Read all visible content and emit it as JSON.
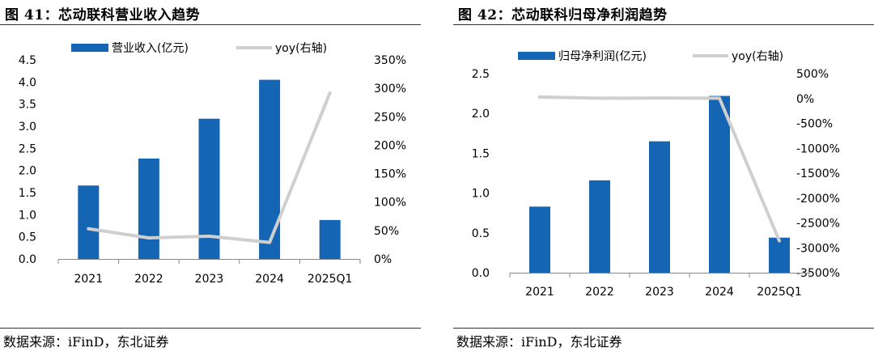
{
  "left": {
    "title": "图 41：芯动联科营业收入趋势",
    "source": "数据来源：iFinD，东北证券"
  },
  "right": {
    "title": "图 42：芯动联科归母净利润趋势",
    "source": "数据来源：iFinD，东北证券"
  },
  "colors": {
    "bar": "#1565b5",
    "line": "#cfcfcf"
  },
  "chart_data": [
    {
      "type": "bar",
      "categories": [
        "2021",
        "2022",
        "2023",
        "2024",
        "2025Q1"
      ],
      "series": [
        {
          "name": "营业收入(亿元)",
          "type": "bar",
          "axis": "left",
          "values": [
            1.66,
            2.27,
            3.17,
            4.05,
            0.88
          ]
        },
        {
          "name": "yoy(右轴)",
          "type": "line",
          "axis": "right",
          "values": [
            53,
            37,
            40,
            29,
            292
          ]
        }
      ],
      "ylim": [
        0,
        4.5
      ],
      "yticks": [
        "0.0",
        "0.5",
        "1.0",
        "1.5",
        "2.0",
        "2.5",
        "3.0",
        "3.5",
        "4.0",
        "4.5"
      ],
      "y2lim": [
        0,
        350
      ],
      "y2ticks": [
        "0%",
        "50%",
        "100%",
        "150%",
        "200%",
        "250%",
        "300%",
        "350%"
      ],
      "legend": "top"
    },
    {
      "type": "bar",
      "categories": [
        "2021",
        "2022",
        "2023",
        "2024",
        "2025Q1"
      ],
      "series": [
        {
          "name": "归母净利润(亿元)",
          "type": "bar",
          "axis": "left",
          "values": [
            0.83,
            1.16,
            1.65,
            2.22,
            0.44
          ]
        },
        {
          "name": "yoy(右轴)",
          "type": "line",
          "axis": "right",
          "values": [
            30,
            5,
            10,
            5,
            -2860
          ]
        }
      ],
      "ylim": [
        0,
        2.5
      ],
      "yticks": [
        "0.0",
        "0.5",
        "1.0",
        "1.5",
        "2.0",
        "2.5"
      ],
      "y2lim": [
        -3500,
        500
      ],
      "y2ticks": [
        "-3500%",
        "-3000%",
        "-2500%",
        "-2000%",
        "-1500%",
        "-1000%",
        "-500%",
        "0%",
        "500%"
      ],
      "legend": "top"
    }
  ]
}
